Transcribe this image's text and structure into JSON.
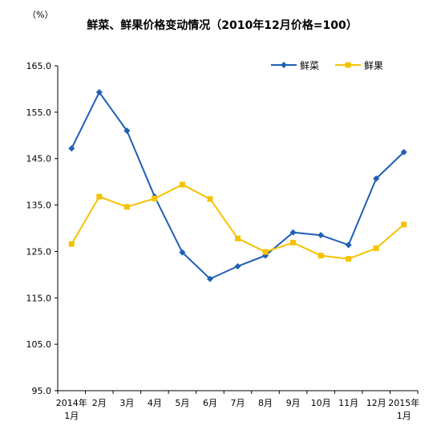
{
  "chart_data": {
    "type": "line",
    "title": "鲜菜、鲜果价格变动情况（2010年12月价格=100）",
    "unit_label": "（%）",
    "categories": [
      {
        "line1": "2014年",
        "line2": "1月"
      },
      {
        "line1": "2月",
        "line2": ""
      },
      {
        "line1": "3月",
        "line2": ""
      },
      {
        "line1": "4月",
        "line2": ""
      },
      {
        "line1": "5月",
        "line2": ""
      },
      {
        "line1": "6月",
        "line2": ""
      },
      {
        "line1": "7月",
        "line2": ""
      },
      {
        "line1": "8月",
        "line2": ""
      },
      {
        "line1": "9月",
        "line2": ""
      },
      {
        "line1": "10月",
        "line2": ""
      },
      {
        "line1": "11月",
        "line2": ""
      },
      {
        "line1": "12月",
        "line2": ""
      },
      {
        "line1": "2015年",
        "line2": "1月"
      }
    ],
    "ylim": [
      95.0,
      165.0
    ],
    "yticks": [
      "165.0",
      "155.0",
      "145.0",
      "135.0",
      "125.0",
      "115.0",
      "105.0",
      "95.0"
    ],
    "ytick_values": [
      165,
      155,
      145,
      135,
      125,
      115,
      105,
      95
    ],
    "grid": false,
    "legend_position": "top-right",
    "series": [
      {
        "name": "鲜菜",
        "color": "#1F5FB4",
        "marker": "diamond",
        "values": [
          147.2,
          159.3,
          151.0,
          136.8,
          124.8,
          119.1,
          121.8,
          124.1,
          129.1,
          128.5,
          126.4,
          140.7,
          146.4
        ]
      },
      {
        "name": "鲜果",
        "color": "#F5C200",
        "marker": "square",
        "values": [
          126.6,
          136.8,
          134.6,
          136.4,
          139.4,
          136.3,
          127.8,
          124.9,
          126.9,
          124.1,
          123.4,
          125.7,
          130.8
        ]
      }
    ]
  }
}
